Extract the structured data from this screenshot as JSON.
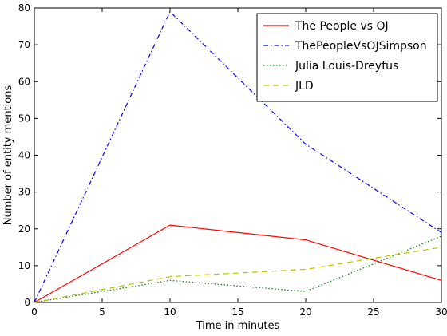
{
  "chart_data": {
    "type": "line",
    "title": "",
    "xlabel": "Time in minutes",
    "ylabel": "Number of entity mentions",
    "xlim": [
      0,
      30
    ],
    "ylim": [
      0,
      80
    ],
    "xticks": [
      0,
      5,
      10,
      15,
      20,
      25,
      30
    ],
    "yticks": [
      0,
      10,
      20,
      30,
      40,
      50,
      60,
      70,
      80
    ],
    "grid": false,
    "legend_position": "top-right",
    "x": [
      0,
      10,
      20,
      30
    ],
    "series": [
      {
        "name": "The People vs OJ",
        "values": [
          0,
          21,
          17,
          6
        ],
        "color": "#ff0000",
        "style": "solid"
      },
      {
        "name": "ThePeopleVsOJSimpson",
        "values": [
          0,
          79,
          43,
          19
        ],
        "color": "#0000ff",
        "style": "dashdot"
      },
      {
        "name": "Julia Louis-Dreyfus",
        "values": [
          0,
          6,
          3,
          18
        ],
        "color": "#008000",
        "style": "dotted"
      },
      {
        "name": "JLD",
        "values": [
          0,
          7,
          9,
          15
        ],
        "color": "#bfbf00",
        "style": "dashed"
      }
    ]
  }
}
